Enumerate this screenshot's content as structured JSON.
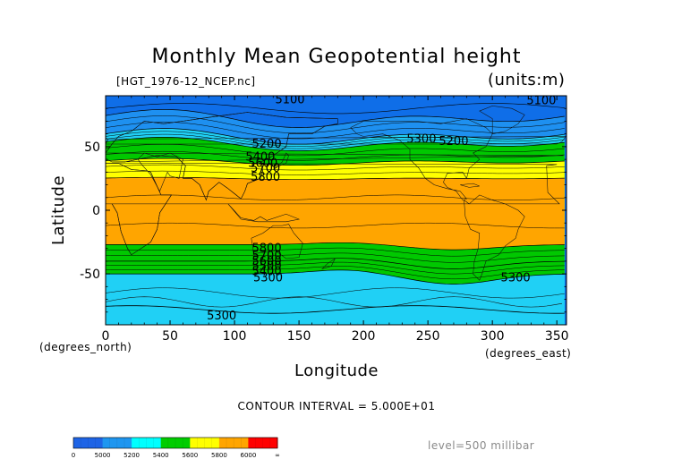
{
  "title": "Monthly Mean Geopotential height",
  "file_label": "[HGT_1976-12_NCEP.nc]",
  "units_label": "(units:m)",
  "contour_interval": "CONTOUR INTERVAL = 5.000E+01",
  "level_label": "level=500 millibar",
  "chart_data": {
    "type": "heatmap",
    "title": "Monthly Mean Geopotential height",
    "xlabel": "Longitude",
    "ylabel": "Latitude",
    "x_unit": "(degrees_east)",
    "y_unit": "(degrees_north)",
    "xlim": [
      0,
      357.5
    ],
    "ylim": [
      -90,
      90
    ],
    "x_ticks": [
      "0",
      "50",
      "100",
      "150",
      "200",
      "250",
      "300",
      "350"
    ],
    "x_tick_values": [
      0,
      50,
      100,
      150,
      200,
      250,
      300,
      350
    ],
    "y_ticks": [
      "50",
      "0",
      "-50"
    ],
    "y_tick_values": [
      50,
      0,
      -50
    ],
    "contour_labels": [
      {
        "text": "5100",
        "lon": 143,
        "lat": 87
      },
      {
        "text": "5100",
        "lon": 338,
        "lat": 86
      },
      {
        "text": "5200",
        "lon": 125,
        "lat": 52
      },
      {
        "text": "5300",
        "lon": 245,
        "lat": 56
      },
      {
        "text": "5200",
        "lon": 270,
        "lat": 54
      },
      {
        "text": "5400",
        "lon": 120,
        "lat": 42
      },
      {
        "text": "5600",
        "lon": 122,
        "lat": 37
      },
      {
        "text": "5700",
        "lon": 124,
        "lat": 33
      },
      {
        "text": "5800",
        "lon": 124,
        "lat": 26
      },
      {
        "text": "5800",
        "lon": 125,
        "lat": -30
      },
      {
        "text": "5700",
        "lon": 125,
        "lat": -36
      },
      {
        "text": "5600",
        "lon": 125,
        "lat": -40
      },
      {
        "text": "5500",
        "lon": 125,
        "lat": -44
      },
      {
        "text": "5400",
        "lon": 125,
        "lat": -48
      },
      {
        "text": "5300",
        "lon": 126,
        "lat": -53
      },
      {
        "text": "5300",
        "lon": 318,
        "lat": -53
      },
      {
        "text": "5300",
        "lon": 90,
        "lat": -83
      }
    ],
    "colorbar": {
      "tick_labels": [
        "0",
        "5000",
        "5200",
        "5400",
        "5600",
        "5800",
        "6000",
        "∞"
      ],
      "colors": [
        "#1e64e6",
        "#1e96f0",
        "#00ffff",
        "#00cd00",
        "#ffff00",
        "#ffa500",
        "#ff0000"
      ],
      "band_colors": [
        "#0f6ee8",
        "#1e90f0",
        "#20d0f5",
        "#00c800",
        "#ffff00",
        "#ffa500",
        "#ff1010"
      ]
    }
  }
}
